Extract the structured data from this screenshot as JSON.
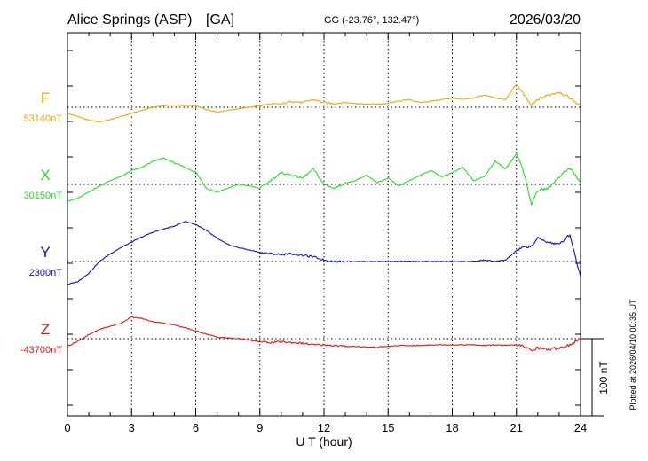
{
  "header": {
    "station": "Alice Springs (ASP)",
    "network": "[GA]",
    "coords": "GG (-23.76°, 132.47°)",
    "date": "2026/03/20"
  },
  "footer_note": "Plotted at 2026/04/10 00:35 UT",
  "chart_data": {
    "type": "line",
    "title": "Alice Springs (ASP)  [GA]  2026/03/20",
    "xlabel": "U T (hour)",
    "ylabel": "",
    "xlim": [
      0,
      24
    ],
    "x_ticks": [
      0,
      3,
      6,
      9,
      12,
      15,
      18,
      21,
      24
    ],
    "scale_bar": {
      "label": "100 nT",
      "value_nT": 100
    },
    "grid": true,
    "y_unit": "nT offset from baseline",
    "series": [
      {
        "name": "F",
        "baseline_label": "53140nT",
        "color": "#f0a800",
        "x": [
          0,
          0.5,
          1,
          1.5,
          2,
          2.5,
          3,
          3.5,
          4,
          4.5,
          5,
          5.5,
          6,
          6.5,
          7,
          7.5,
          8,
          8.5,
          9,
          9.5,
          10,
          10.5,
          11,
          11.5,
          12,
          12.5,
          13,
          13.5,
          14,
          14.5,
          15,
          15.5,
          16,
          16.5,
          17,
          17.5,
          18,
          18.5,
          19,
          19.5,
          20,
          20.5,
          21,
          21.3,
          21.7,
          22,
          22.5,
          23,
          23.5,
          24
        ],
        "values": [
          -8,
          -12,
          -17,
          -19,
          -16,
          -12,
          -8,
          -4,
          0,
          2,
          3,
          2,
          2,
          -3,
          -6,
          -4,
          -2,
          0,
          2,
          4,
          4,
          8,
          6,
          10,
          6,
          5,
          6,
          5,
          4,
          4,
          5,
          8,
          10,
          6,
          8,
          10,
          12,
          10,
          12,
          16,
          12,
          10,
          30,
          18,
          2,
          10,
          16,
          20,
          12,
          2
        ]
      },
      {
        "name": "X",
        "baseline_label": "30150nT",
        "color": "#22e022",
        "x": [
          0,
          0.5,
          1,
          1.5,
          2,
          2.5,
          3,
          3.5,
          4,
          4.5,
          5,
          5.5,
          6,
          6.5,
          7,
          7.5,
          8,
          8.5,
          9,
          9.5,
          10,
          10.5,
          11,
          11.5,
          12,
          12.5,
          13,
          13.5,
          14,
          14.5,
          15,
          15.5,
          16,
          16.5,
          17,
          17.5,
          18,
          18.5,
          19,
          19.5,
          20,
          20.5,
          21,
          21.3,
          21.7,
          22,
          22.5,
          23,
          23.5,
          24
        ],
        "values": [
          -22,
          -18,
          -10,
          -2,
          5,
          10,
          18,
          22,
          30,
          34,
          28,
          22,
          16,
          -5,
          -10,
          -5,
          0,
          -2,
          -5,
          5,
          15,
          12,
          8,
          20,
          0,
          -5,
          2,
          5,
          12,
          2,
          8,
          -2,
          5,
          12,
          18,
          10,
          15,
          22,
          5,
          10,
          30,
          20,
          40,
          20,
          -25,
          -8,
          -5,
          10,
          22,
          2
        ]
      },
      {
        "name": "Y",
        "baseline_label": "2300nT",
        "color": "#1010cc",
        "x": [
          0,
          0.5,
          1,
          1.5,
          2,
          2.5,
          3,
          3.5,
          4,
          4.5,
          5,
          5.5,
          6,
          6.5,
          7,
          7.5,
          8,
          8.5,
          9,
          9.5,
          10,
          10.5,
          11,
          11.5,
          12,
          12.5,
          13,
          13.5,
          14,
          14.5,
          15,
          15.5,
          16,
          16.5,
          17,
          17.5,
          18,
          18.5,
          19,
          19.5,
          20,
          20.5,
          21,
          21.3,
          21.7,
          22,
          22.5,
          23,
          23.5,
          24
        ],
        "values": [
          -30,
          -26,
          -15,
          0,
          10,
          18,
          25,
          32,
          38,
          42,
          46,
          52,
          48,
          40,
          30,
          22,
          18,
          15,
          12,
          10,
          9,
          10,
          8,
          6,
          2,
          0,
          0,
          0,
          0,
          0,
          0,
          0,
          0,
          0,
          0,
          0,
          0,
          0,
          0,
          2,
          0,
          2,
          14,
          18,
          20,
          30,
          25,
          22,
          35,
          -20
        ]
      },
      {
        "name": "Z",
        "baseline_label": "-43700nT",
        "color": "#ee1111",
        "x": [
          0,
          0.5,
          1,
          1.5,
          2,
          2.5,
          3,
          3.5,
          4,
          4.5,
          5,
          5.5,
          6,
          6.5,
          7,
          7.5,
          8,
          8.5,
          9,
          9.5,
          10,
          10.5,
          11,
          11.5,
          12,
          12.5,
          13,
          13.5,
          14,
          14.5,
          15,
          15.5,
          16,
          16.5,
          17,
          17.5,
          18,
          18.5,
          19,
          19.5,
          20,
          20.5,
          21,
          21.3,
          21.7,
          22,
          22.5,
          23,
          23.5,
          24
        ],
        "values": [
          -10,
          -3,
          5,
          12,
          16,
          20,
          28,
          26,
          22,
          20,
          18,
          14,
          10,
          6,
          2,
          1,
          0,
          -2,
          -4,
          -5,
          -4,
          -5,
          -6,
          -8,
          -8,
          -9,
          -10,
          -10,
          -11,
          -11,
          -10,
          -9,
          -9,
          -9,
          -8,
          -8,
          -8,
          -8,
          -8,
          -9,
          -8,
          -9,
          -8,
          -10,
          -15,
          -12,
          -14,
          -12,
          -8,
          0
        ]
      }
    ]
  }
}
